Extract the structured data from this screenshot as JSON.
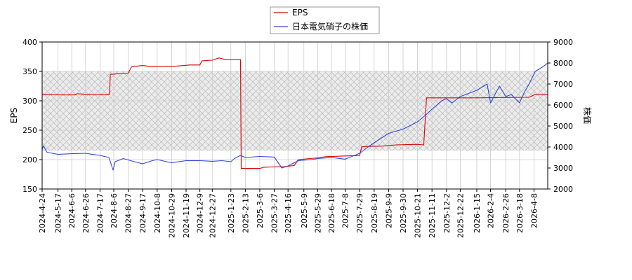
{
  "chart_data": {
    "type": "line",
    "legend": {
      "position": "top-center",
      "entries": [
        {
          "label": "EPS",
          "color": "#dd0000"
        },
        {
          "label": "日本電気硝子の株価",
          "color": "#3344dd"
        }
      ]
    },
    "y_left": {
      "label": "EPS",
      "ylim": [
        150,
        400
      ],
      "ticks": [
        "150",
        "200",
        "250",
        "300",
        "350",
        "400"
      ]
    },
    "y_right": {
      "label": "株価",
      "ylim": [
        2000,
        9000
      ],
      "ticks": [
        "2000",
        "3000",
        "4000",
        "5000",
        "6000",
        "7000",
        "8000",
        "9000"
      ]
    },
    "x_range": [
      "2024-04-24",
      "2026-04-28"
    ],
    "x_ticks": [
      "2024-4-24",
      "2024-5-17",
      "2024-6-6",
      "2024-6-26",
      "2024-7-17",
      "2024-8-6",
      "2024-8-27",
      "2024-9-17",
      "2024-10-8",
      "2024-10-29",
      "2024-11-19",
      "2024-12-9",
      "2024-12-27",
      "2025-1-23",
      "2025-2-13",
      "2025-3-6",
      "2025-3-27",
      "2025-4-16",
      "2025-5-9",
      "2025-5-29",
      "2025-6-18",
      "2025-7-8",
      "2025-7-29",
      "2025-8-19",
      "2025-9-9",
      "2025-9-30",
      "2025-10-21",
      "2025-11-11",
      "2025-12-2",
      "2025-12-22",
      "2026-1-15",
      "2026-2-4",
      "2026-2-26",
      "2026-3-18",
      "2026-4-8"
    ],
    "grid": true,
    "shaded_band_eps": [
      215,
      350
    ],
    "series": [
      {
        "name": "EPS",
        "axis": "left",
        "color": "#dd0000",
        "points": [
          [
            "2024-04-24",
            311
          ],
          [
            "2024-05-20",
            310
          ],
          [
            "2024-06-10",
            310
          ],
          [
            "2024-06-14",
            312
          ],
          [
            "2024-07-10",
            310
          ],
          [
            "2024-07-31",
            311
          ],
          [
            "2024-08-01",
            345
          ],
          [
            "2024-08-27",
            347
          ],
          [
            "2024-09-01",
            358
          ],
          [
            "2024-09-17",
            360
          ],
          [
            "2024-10-01",
            358
          ],
          [
            "2024-11-05",
            359
          ],
          [
            "2024-11-25",
            361
          ],
          [
            "2024-12-09",
            361
          ],
          [
            "2024-12-12",
            368
          ],
          [
            "2024-12-27",
            369
          ],
          [
            "2025-01-06",
            373
          ],
          [
            "2025-01-15",
            370
          ],
          [
            "2025-02-06",
            370
          ],
          [
            "2025-02-07",
            185
          ],
          [
            "2025-03-06",
            185
          ],
          [
            "2025-03-12",
            187
          ],
          [
            "2025-04-10",
            188
          ],
          [
            "2025-04-25",
            190
          ],
          [
            "2025-05-01",
            200
          ],
          [
            "2025-05-29",
            203
          ],
          [
            "2025-06-10",
            205
          ],
          [
            "2025-07-29",
            207
          ],
          [
            "2025-08-01",
            222
          ],
          [
            "2025-08-30",
            223
          ],
          [
            "2025-09-20",
            225
          ],
          [
            "2025-10-20",
            226
          ],
          [
            "2025-10-30",
            225
          ],
          [
            "2025-11-03",
            305
          ],
          [
            "2026-01-10",
            305
          ],
          [
            "2026-04-01",
            306
          ],
          [
            "2026-04-10",
            311
          ],
          [
            "2026-04-28",
            311
          ]
        ]
      },
      {
        "name": "日本電気硝子の株価",
        "axis": "right",
        "color": "#3344dd",
        "points": [
          [
            "2024-04-24",
            3900
          ],
          [
            "2024-04-26",
            4050
          ],
          [
            "2024-05-01",
            3750
          ],
          [
            "2024-05-17",
            3650
          ],
          [
            "2024-06-06",
            3680
          ],
          [
            "2024-06-26",
            3700
          ],
          [
            "2024-07-17",
            3600
          ],
          [
            "2024-07-30",
            3500
          ],
          [
            "2024-08-05",
            2900
          ],
          [
            "2024-08-08",
            3300
          ],
          [
            "2024-08-20",
            3450
          ],
          [
            "2024-09-05",
            3300
          ],
          [
            "2024-09-17",
            3200
          ],
          [
            "2024-10-01",
            3350
          ],
          [
            "2024-10-08",
            3400
          ],
          [
            "2024-10-29",
            3250
          ],
          [
            "2024-11-19",
            3350
          ],
          [
            "2024-12-09",
            3350
          ],
          [
            "2024-12-27",
            3320
          ],
          [
            "2025-01-10",
            3350
          ],
          [
            "2025-01-23",
            3300
          ],
          [
            "2025-01-28",
            3450
          ],
          [
            "2025-02-06",
            3600
          ],
          [
            "2025-02-13",
            3500
          ],
          [
            "2025-03-06",
            3550
          ],
          [
            "2025-03-27",
            3520
          ],
          [
            "2025-04-07",
            3000
          ],
          [
            "2025-04-16",
            3100
          ],
          [
            "2025-05-01",
            3350
          ],
          [
            "2025-05-20",
            3400
          ],
          [
            "2025-05-29",
            3450
          ],
          [
            "2025-06-18",
            3500
          ],
          [
            "2025-07-08",
            3420
          ],
          [
            "2025-07-29",
            3700
          ],
          [
            "2025-08-10",
            4000
          ],
          [
            "2025-08-19",
            4200
          ],
          [
            "2025-09-09",
            4650
          ],
          [
            "2025-09-30",
            4850
          ],
          [
            "2025-10-21",
            5200
          ],
          [
            "2025-11-01",
            5500
          ],
          [
            "2025-11-11",
            5800
          ],
          [
            "2025-11-25",
            6200
          ],
          [
            "2025-12-02",
            6300
          ],
          [
            "2025-12-10",
            6100
          ],
          [
            "2025-12-22",
            6400
          ],
          [
            "2026-01-15",
            6700
          ],
          [
            "2026-01-30",
            7000
          ],
          [
            "2026-02-04",
            6100
          ],
          [
            "2026-02-12",
            6600
          ],
          [
            "2026-02-17",
            6900
          ],
          [
            "2026-02-26",
            6400
          ],
          [
            "2026-03-06",
            6500
          ],
          [
            "2026-03-18",
            6100
          ],
          [
            "2026-03-25",
            6600
          ],
          [
            "2026-04-01",
            7000
          ],
          [
            "2026-04-10",
            7600
          ],
          [
            "2026-04-20",
            7800
          ],
          [
            "2026-04-28",
            8000
          ]
        ]
      }
    ]
  }
}
